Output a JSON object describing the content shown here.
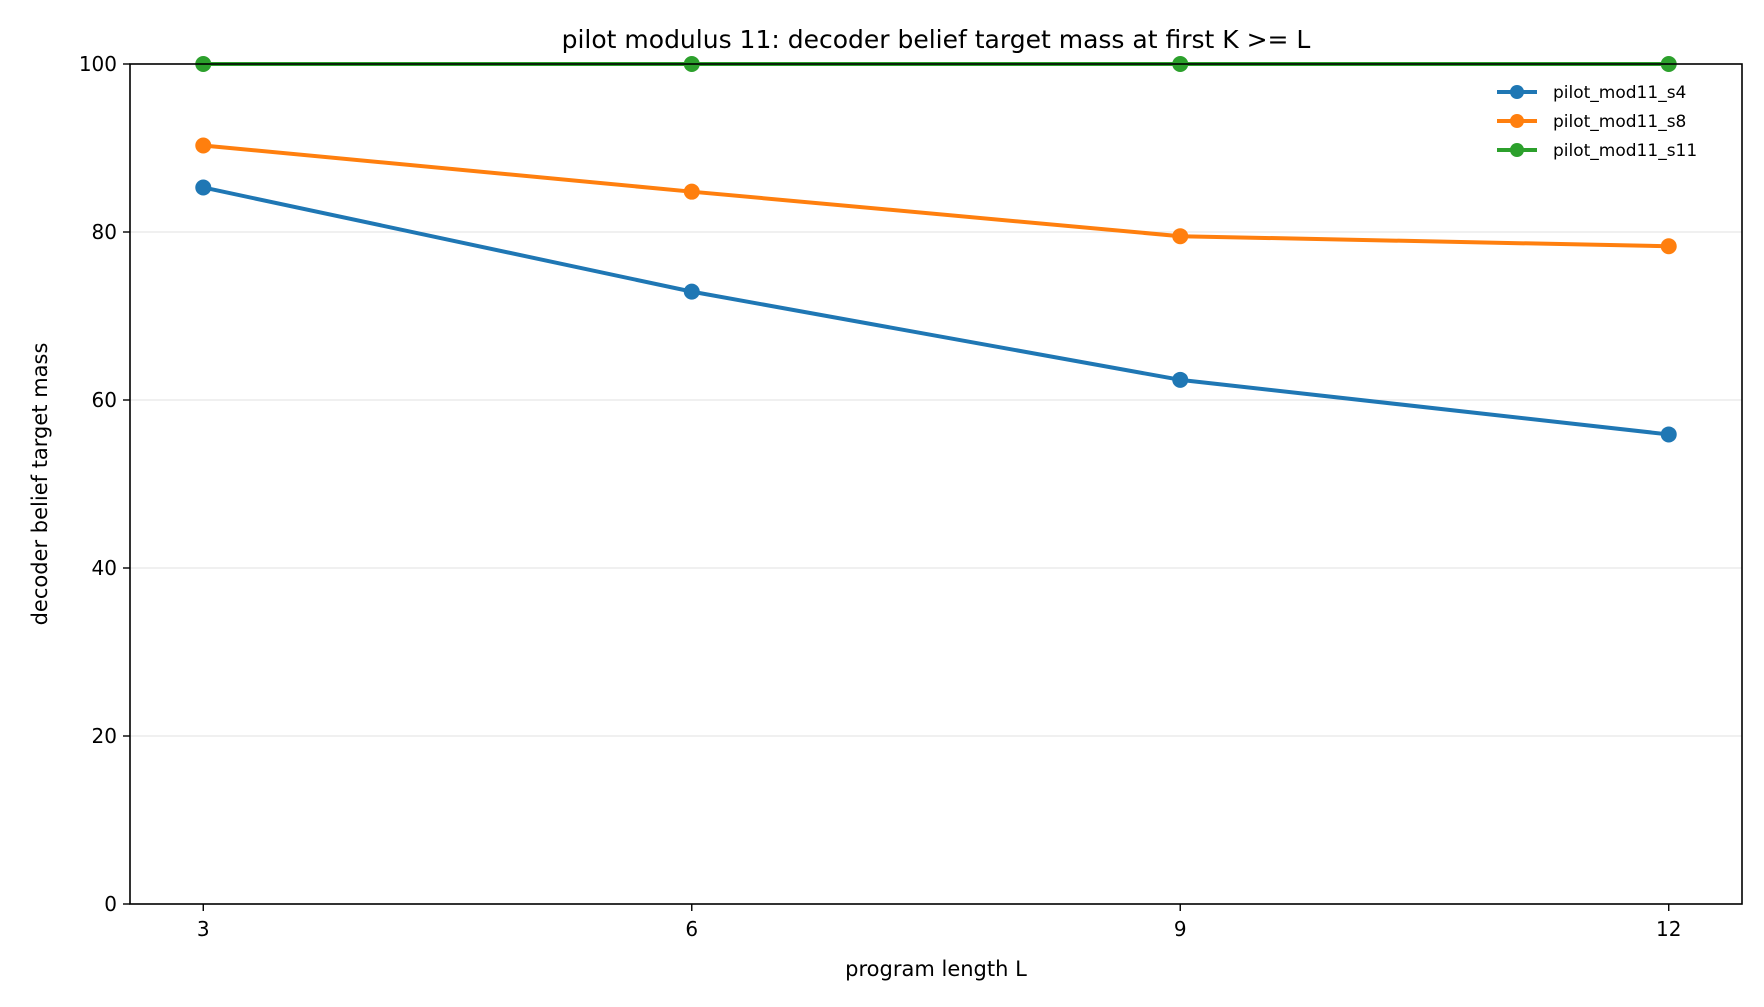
{
  "chart_data": {
    "type": "line",
    "title": "pilot modulus 11: decoder belief target mass at first K >= L",
    "xlabel": "program length L",
    "ylabel": "decoder belief target mass",
    "x": [
      3,
      6,
      9,
      12
    ],
    "x_ticks": [
      "3",
      "6",
      "9",
      "12"
    ],
    "y_ticks": [
      "0",
      "20",
      "40",
      "60",
      "80",
      "100"
    ],
    "xlim": [
      2.55,
      12.45
    ],
    "ylim": [
      0,
      100
    ],
    "grid": "horizontal",
    "legend_position": "top-right",
    "series": [
      {
        "name": "pilot_mod11_s4",
        "color": "#1f77b4",
        "values": [
          85.3,
          72.9,
          62.4,
          55.9
        ]
      },
      {
        "name": "pilot_mod11_s8",
        "color": "#ff7f0e",
        "values": [
          90.3,
          84.8,
          79.5,
          78.3
        ]
      },
      {
        "name": "pilot_mod11_s11",
        "color": "#2ca02c",
        "values": [
          100,
          100,
          100,
          100
        ]
      }
    ]
  }
}
